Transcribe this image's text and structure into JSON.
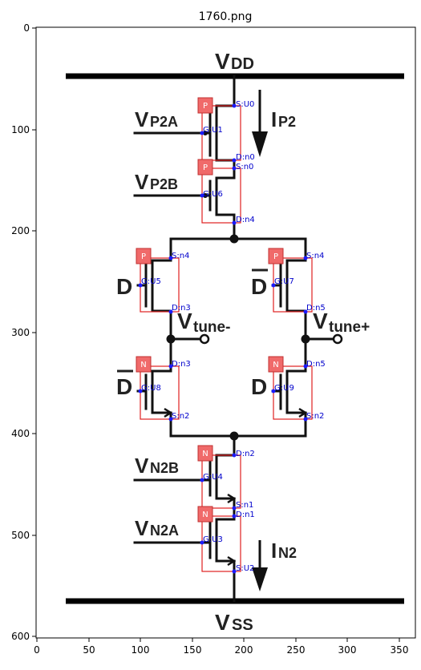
{
  "title": "1760.png",
  "axes": {
    "x_ticks": [
      "0",
      "50",
      "100",
      "150",
      "200",
      "250",
      "300",
      "350"
    ],
    "y_ticks": [
      "0",
      "100",
      "200",
      "300",
      "400",
      "500",
      "600"
    ]
  },
  "circuit_labels": {
    "vdd": "V",
    "vdd_sub": "DD",
    "ip2": "I",
    "ip2_sub": "P2",
    "vp2a": "V",
    "vp2a_sub": "P2A",
    "vp2b": "V",
    "vp2b_sub": "P2B",
    "d_left": "D",
    "d_bar_right": "D",
    "vtune_minus": "V",
    "vtune_minus_sub": "tune-",
    "vtune_plus": "V",
    "vtune_plus_sub": "tune+",
    "d_bar_left": "D",
    "d_right": "D",
    "vn2b": "V",
    "vn2b_sub": "N2B",
    "vn2a": "V",
    "vn2a_sub": "N2A",
    "in2": "I",
    "in2_sub": "N2",
    "vss": "V",
    "vss_sub": "SS"
  },
  "transistors": [
    {
      "id": "U1",
      "type": "P",
      "top": "S:U0",
      "gate": "G:U1",
      "bottom": "D:n0"
    },
    {
      "id": "U6",
      "type": "P",
      "top": "S:n0",
      "gate": "G:U6",
      "bottom": "D:n4"
    },
    {
      "id": "U5",
      "type": "P",
      "top": "S:n4",
      "gate": "G:U5",
      "bottom": "D:n3"
    },
    {
      "id": "U7",
      "type": "P",
      "top": "S:n4",
      "gate": "G:U7",
      "bottom": "D:n5"
    },
    {
      "id": "U8",
      "type": "N",
      "top": "D:n3",
      "gate": "G:U8",
      "bottom": "S:n2"
    },
    {
      "id": "U9",
      "type": "N",
      "top": "D:n5",
      "gate": "G:U9",
      "bottom": "S:n2"
    },
    {
      "id": "U4",
      "type": "N",
      "top": "D:n2",
      "gate": "G:U4",
      "bottom": "S:n1"
    },
    {
      "id": "U3",
      "type": "N",
      "top": "D:n1",
      "gate": "G:U3",
      "bottom": "S:U2"
    }
  ]
}
